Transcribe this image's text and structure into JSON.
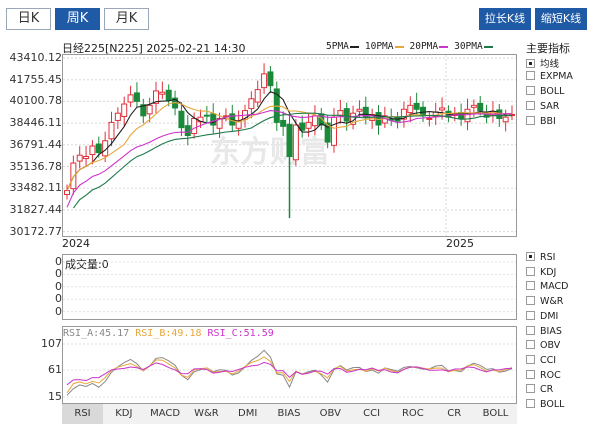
{
  "period_tabs": [
    {
      "label": "日K",
      "active": false
    },
    {
      "label": "周K",
      "active": true
    },
    {
      "label": "月K",
      "active": false
    }
  ],
  "actions": {
    "lengthen": "拉长K线",
    "shorten": "缩短K线"
  },
  "header": {
    "name": "日经225[N225]",
    "datetime": "2025-02-21 14:30",
    "ma": [
      {
        "label": "5PMA",
        "color": "#222222"
      },
      {
        "label": "10PMA",
        "color": "#e7a73a"
      },
      {
        "label": "20PMA",
        "color": "#cc33cc"
      },
      {
        "label": "30PMA",
        "color": "#1f7a4a"
      }
    ]
  },
  "price_axis": [
    "43410.12",
    "41755.45",
    "40100.78",
    "38446.11",
    "36791.44",
    "35136.78",
    "33482.11",
    "31827.44",
    "30172.77"
  ],
  "time_axis": [
    "2024",
    "2025"
  ],
  "watermark": "东方财富",
  "main_indicator": {
    "title": "主要指标",
    "items": [
      {
        "label": "均线",
        "checked": true
      },
      {
        "label": "EXPMA",
        "checked": false
      },
      {
        "label": "BOLL",
        "checked": false
      },
      {
        "label": "SAR",
        "checked": false
      },
      {
        "label": "BBI",
        "checked": false
      }
    ]
  },
  "volume": {
    "label": "成交量:0",
    "axis": [
      "0",
      "0",
      "0",
      "0",
      "0"
    ]
  },
  "sub_indicators": [
    {
      "label": "RSI",
      "checked": true
    },
    {
      "label": "KDJ",
      "checked": false
    },
    {
      "label": "MACD",
      "checked": false
    },
    {
      "label": "W&R",
      "checked": false
    },
    {
      "label": "DMI",
      "checked": false
    },
    {
      "label": "BIAS",
      "checked": false
    },
    {
      "label": "OBV",
      "checked": false
    },
    {
      "label": "CCI",
      "checked": false
    },
    {
      "label": "ROC",
      "checked": false
    },
    {
      "label": "CR",
      "checked": false
    },
    {
      "label": "BOLL",
      "checked": false
    }
  ],
  "rsi": {
    "a": "RSI_A:45.17",
    "b": "RSI_B:49.18",
    "c": "RSI_C:51.59",
    "colors": {
      "a": "#888888",
      "b": "#e7a73a",
      "c": "#cc33cc"
    },
    "axis": [
      "107",
      "61",
      "15"
    ]
  },
  "bottom_tabs": [
    "RSI",
    "KDJ",
    "MACD",
    "W&R",
    "DMI",
    "BIAS",
    "OBV",
    "CCI",
    "ROC",
    "CR",
    "BOLL"
  ],
  "colors": {
    "up": "#e0303a",
    "down": "#1a8a3a",
    "accent": "#1f5aa6"
  }
}
